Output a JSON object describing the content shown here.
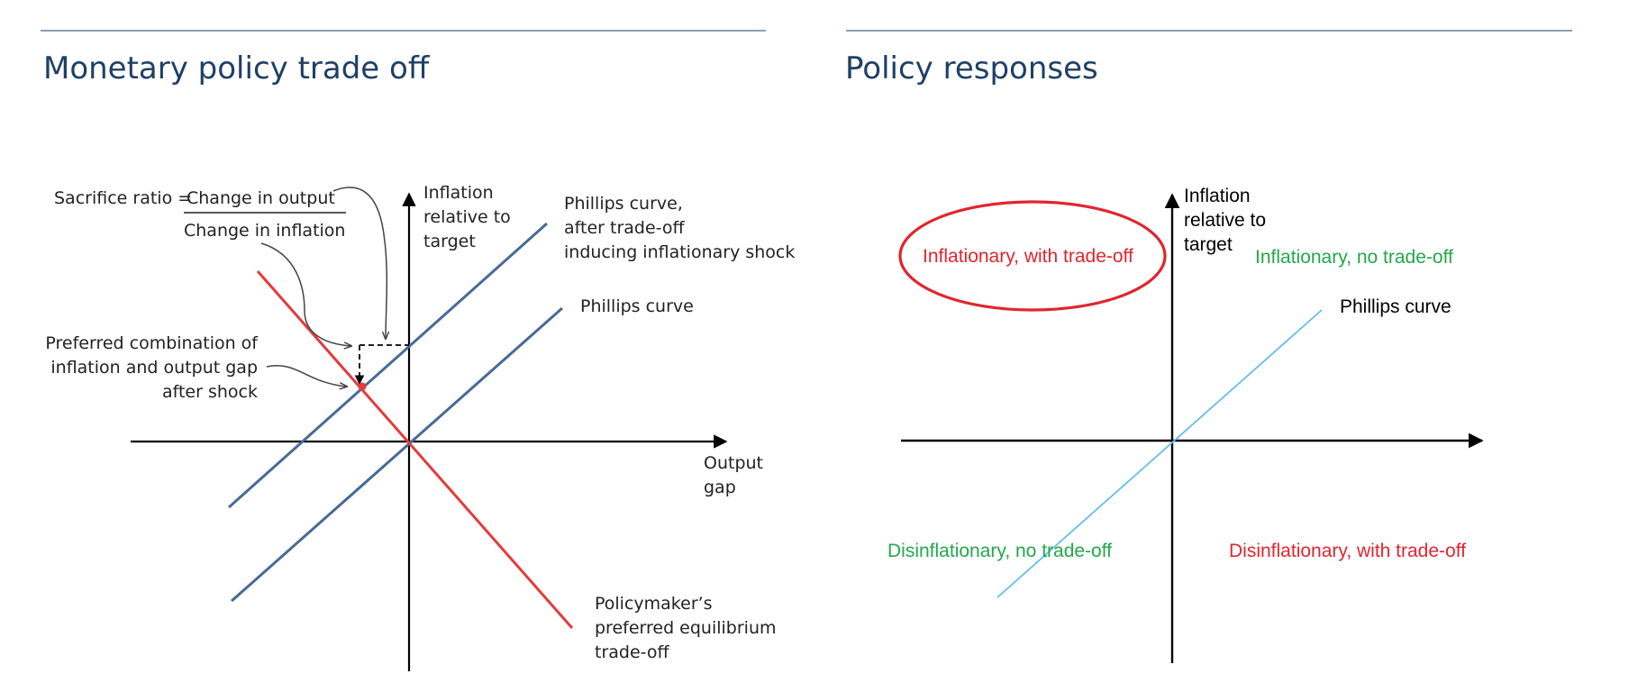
{
  "colors": {
    "title": "#1f3f66",
    "rule": "#8da0b4",
    "axis": "#000000",
    "phillips_left": "#476a96",
    "policy_line": "#e53a3a",
    "phillips_right": "#66bde8",
    "with_tradeoff": "#e0262e",
    "no_tradeoff": "#23a84a",
    "text": "#222222"
  },
  "left": {
    "title": "Monetary policy trade off",
    "sacrifice": {
      "prefix": "Sacrifice ratio =",
      "numerator": "Change in output",
      "denominator": "Change in inflation"
    },
    "y_axis": [
      "Inflation",
      "relative to",
      "target"
    ],
    "x_axis": [
      "Output",
      "gap"
    ],
    "shifted_curve": [
      "Phillips curve,",
      "after trade-off",
      "inducing inflationary shock"
    ],
    "phillips_curve": "Phillips curve",
    "preferred": [
      "Preferred combination of",
      "inflation and output gap",
      "after shock"
    ],
    "policymaker": [
      "Policymaker’s",
      "preferred equilibrium",
      "trade-off"
    ]
  },
  "right": {
    "title": "Policy responses",
    "y_axis": [
      "Inflation",
      "relative to",
      "target"
    ],
    "phillips_curve": "Phillips curve",
    "quadrants": {
      "top_left": "Inflationary, with trade-off",
      "top_right": "Inflationary, no trade-off",
      "bottom_left": "Disinflationary, no trade-off",
      "bottom_right": "Disinflationary, with trade-off"
    }
  }
}
